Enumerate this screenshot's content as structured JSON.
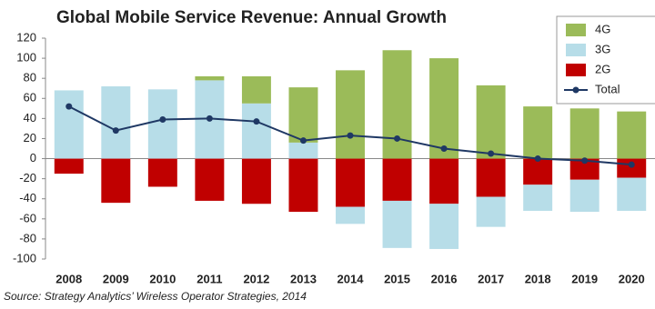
{
  "chart_data": {
    "type": "bar",
    "stacked": true,
    "title": "Global Mobile Service Revenue: Annual Growth",
    "source": "Source: Strategy Analytics’ Wireless Operator Strategies, 2014",
    "categories": [
      "2008",
      "2009",
      "2010",
      "2011",
      "2012",
      "2013",
      "2014",
      "2015",
      "2016",
      "2017",
      "2018",
      "2019",
      "2020"
    ],
    "series": [
      {
        "name": "4G",
        "color": "#9bbb59",
        "values": [
          0,
          0,
          0,
          4,
          27,
          55,
          88,
          108,
          100,
          73,
          52,
          50,
          47
        ]
      },
      {
        "name": "3G",
        "color": "#b7dde8",
        "values": [
          68,
          72,
          69,
          78,
          55,
          16,
          -17,
          -47,
          -45,
          -30,
          -26,
          -32,
          -33
        ]
      },
      {
        "name": "2G",
        "color": "#c00000",
        "values": [
          -15,
          -44,
          -28,
          -42,
          -45,
          -53,
          -48,
          -42,
          -45,
          -38,
          -26,
          -21,
          -19
        ]
      },
      {
        "name": "Total",
        "color": "#1f3864",
        "type": "line",
        "values": [
          52,
          28,
          39,
          40,
          37,
          18,
          23,
          20,
          10,
          5,
          0,
          -2,
          -6
        ]
      }
    ],
    "ylim": [
      -100,
      120
    ],
    "yticks": [
      -100,
      -80,
      -60,
      -40,
      -20,
      0,
      20,
      40,
      60,
      80,
      100,
      120
    ],
    "legend": "top-right"
  }
}
